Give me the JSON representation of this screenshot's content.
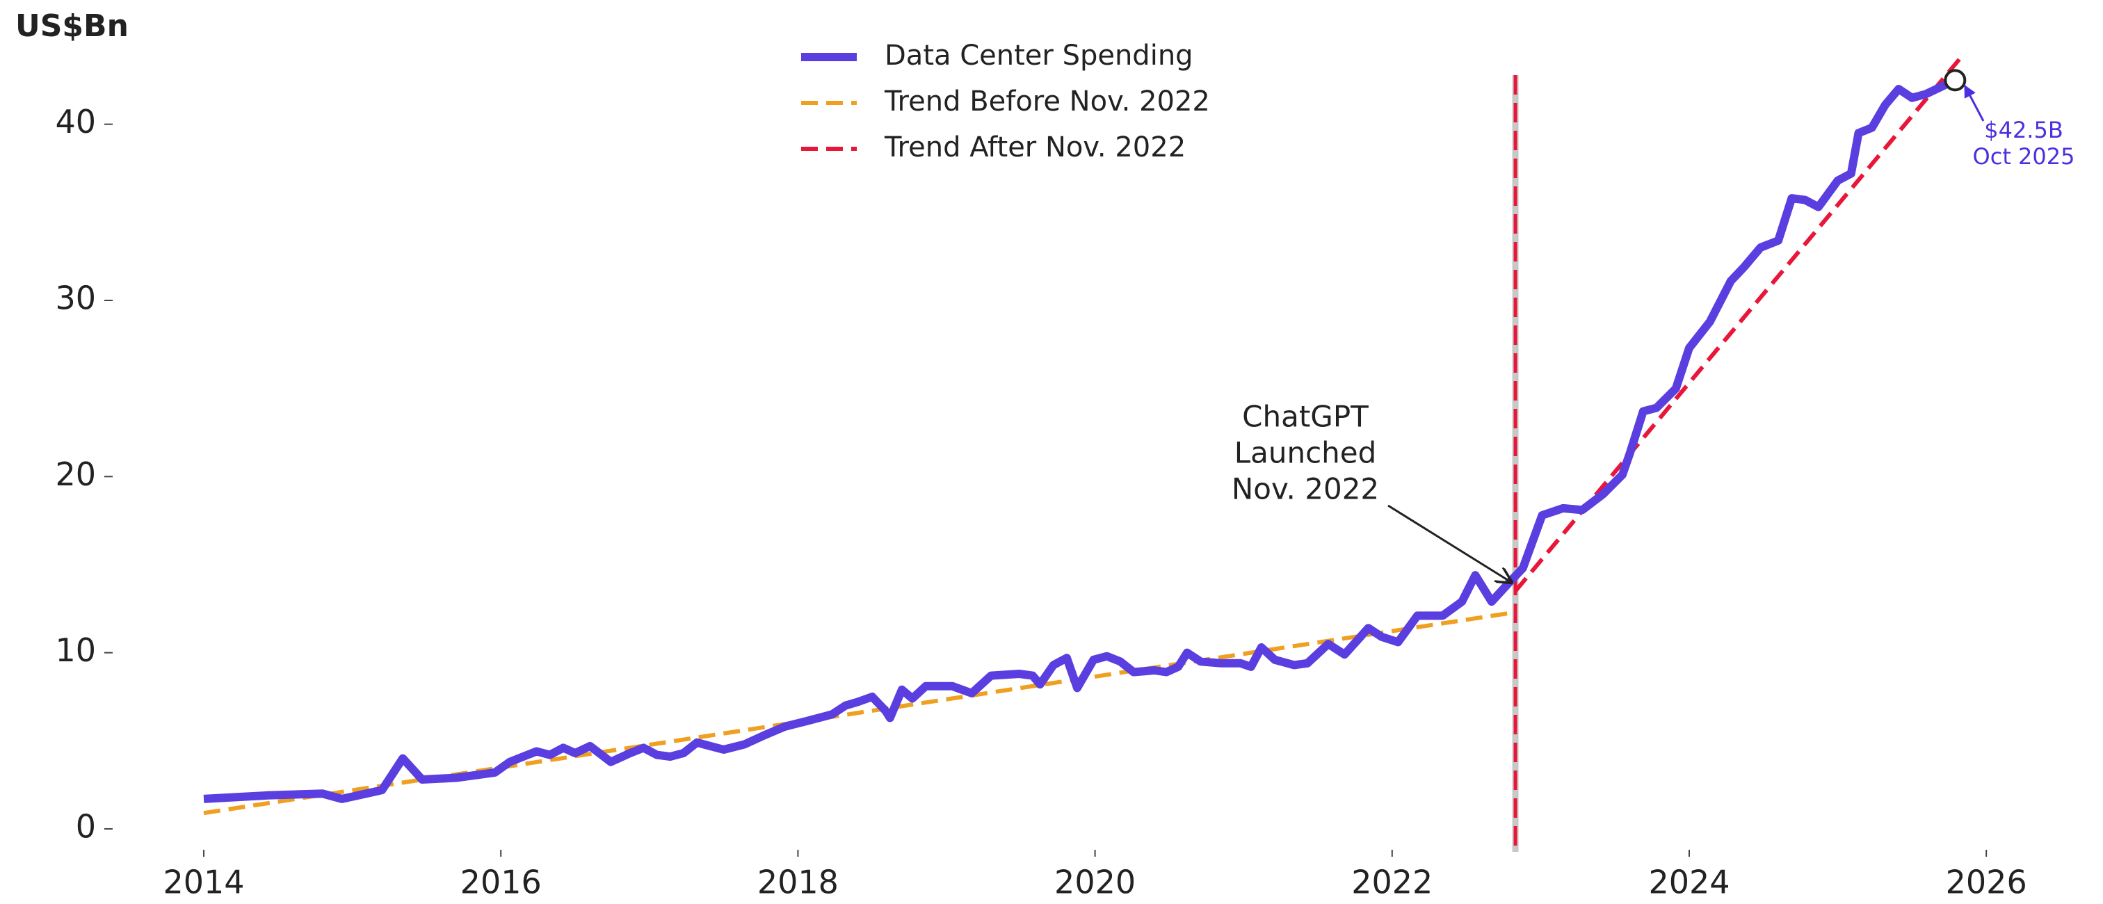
{
  "chart_data": {
    "type": "line",
    "y_unit_label": "US$Bn",
    "xlim": [
      2013.3,
      2026.7
    ],
    "ylim": [
      -1,
      45
    ],
    "xticks": [
      2014,
      2016,
      2018,
      2020,
      2022,
      2024,
      2026
    ],
    "yticks": [
      0,
      10,
      20,
      30,
      40
    ],
    "legend": "upper center",
    "series": [
      {
        "name": "Data Center Spending",
        "color": "#5a3ee0",
        "style": "solid",
        "x": [
          2014.0,
          2014.43,
          2014.8,
          2014.93,
          2015.2,
          2015.34,
          2015.47,
          2015.7,
          2015.96,
          2016.06,
          2016.24,
          2016.33,
          2016.42,
          2016.5,
          2016.6,
          2016.74,
          2016.87,
          2016.96,
          2017.05,
          2017.14,
          2017.23,
          2017.32,
          2017.41,
          2017.5,
          2017.64,
          2017.77,
          2017.91,
          2018.05,
          2018.23,
          2018.32,
          2018.4,
          2018.5,
          2018.59,
          2018.62,
          2018.7,
          2018.77,
          2018.86,
          2019.04,
          2019.17,
          2019.3,
          2019.49,
          2019.58,
          2019.63,
          2019.72,
          2019.81,
          2019.88,
          2019.99,
          2020.08,
          2020.17,
          2020.26,
          2020.4,
          2020.48,
          2020.56,
          2020.62,
          2020.71,
          2020.85,
          2020.98,
          2021.05,
          2021.12,
          2021.21,
          2021.34,
          2021.43,
          2021.57,
          2021.68,
          2021.84,
          2021.93,
          2022.04,
          2022.17,
          2022.34,
          2022.47,
          2022.56,
          2022.67,
          2022.79,
          2022.88,
          2023.01,
          2023.15,
          2023.28,
          2023.42,
          2023.55,
          2023.6,
          2023.69,
          2023.78,
          2023.91,
          2024.0,
          2024.14,
          2024.28,
          2024.37,
          2024.48,
          2024.6,
          2024.69,
          2024.78,
          2024.87,
          2025.0,
          2025.09,
          2025.14,
          2025.23,
          2025.32,
          2025.41,
          2025.5,
          2025.59,
          2025.79
        ],
        "values": [
          1.7,
          1.9,
          2.0,
          1.7,
          2.2,
          4.0,
          2.8,
          2.9,
          3.2,
          3.8,
          4.4,
          4.2,
          4.6,
          4.3,
          4.7,
          3.8,
          4.3,
          4.6,
          4.2,
          4.1,
          4.3,
          4.9,
          4.7,
          4.5,
          4.8,
          5.3,
          5.8,
          6.1,
          6.5,
          7.0,
          7.2,
          7.5,
          6.7,
          6.3,
          7.9,
          7.4,
          8.1,
          8.1,
          7.7,
          8.7,
          8.8,
          8.7,
          8.2,
          9.3,
          9.7,
          8.0,
          9.6,
          9.8,
          9.5,
          8.9,
          9.0,
          8.9,
          9.2,
          10.0,
          9.5,
          9.4,
          9.4,
          9.2,
          10.3,
          9.6,
          9.3,
          9.4,
          10.5,
          9.9,
          11.4,
          10.9,
          10.6,
          12.1,
          12.1,
          12.9,
          14.4,
          12.9,
          14.0,
          14.8,
          17.8,
          18.2,
          18.1,
          19.0,
          20.1,
          21.3,
          23.7,
          23.9,
          25.0,
          27.3,
          28.8,
          31.1,
          31.9,
          33.0,
          33.4,
          35.8,
          35.7,
          35.3,
          36.8,
          37.2,
          39.5,
          39.8,
          41.1,
          42.0,
          41.5,
          41.7,
          42.5
        ]
      },
      {
        "name": "Trend Before Nov. 2022",
        "color": "#f0a020",
        "style": "dashed",
        "x": [
          2014.0,
          2022.83
        ],
        "values": [
          0.9,
          12.3
        ]
      },
      {
        "name": "Trend After Nov. 2022",
        "color": "#e8173a",
        "style": "dashed",
        "x": [
          2022.83,
          2025.85
        ],
        "values": [
          13.5,
          44.0
        ]
      }
    ],
    "vline": {
      "x": 2022.83,
      "color": "#e8173a"
    },
    "annotations": [
      {
        "lines": [
          "ChatGPT",
          "Launched",
          "Nov. 2022"
        ],
        "color": "#222222"
      },
      {
        "lines": [
          "$42.5B",
          "Oct 2025"
        ],
        "color": "#4a30e0"
      }
    ]
  }
}
